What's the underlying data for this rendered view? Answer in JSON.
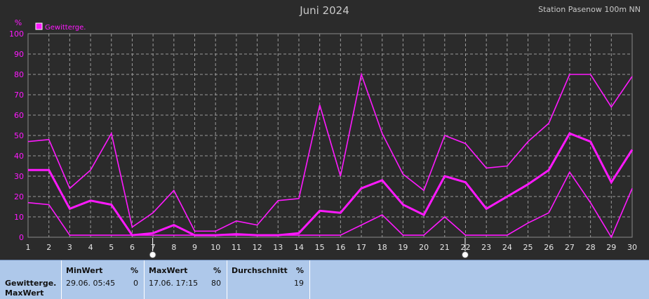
{
  "header": {
    "title": "Juni 2024",
    "station": "Station Pasenow 100m NN"
  },
  "chart_data": {
    "type": "line",
    "title": "Juni 2024",
    "ylabel": "%",
    "ylim": [
      0,
      100
    ],
    "yticks": [
      "0",
      "10",
      "20",
      "30",
      "40",
      "50",
      "60",
      "70",
      "80",
      "90",
      "100"
    ],
    "x": [
      1,
      2,
      3,
      4,
      5,
      6,
      7,
      8,
      9,
      10,
      11,
      12,
      13,
      14,
      15,
      16,
      17,
      18,
      19,
      20,
      21,
      22,
      23,
      24,
      25,
      26,
      27,
      28,
      29,
      30
    ],
    "xticks": [
      "1",
      "2",
      "3",
      "4",
      "5",
      "6",
      "7",
      "8",
      "9",
      "10",
      "11",
      "12",
      "13",
      "14",
      "15",
      "16",
      "17",
      "18",
      "19",
      "20",
      "21",
      "22",
      "23",
      "24",
      "25",
      "26",
      "27",
      "28",
      "29",
      "30"
    ],
    "legend": [
      "Gewitterge."
    ],
    "legend_position": "top-left",
    "grid": true,
    "colors": {
      "series": "#ff19ff",
      "grid": "#9a9a9a",
      "axis_text": "#ff19ff",
      "background": "#2b2b2b"
    },
    "series": [
      {
        "name": "Gewitterge.",
        "style": "max",
        "values": [
          47,
          48,
          24,
          33,
          51,
          5,
          12,
          23,
          3,
          3,
          8,
          6,
          18,
          19,
          65,
          30,
          80,
          51,
          31,
          23,
          50,
          46,
          34,
          35,
          47,
          56,
          80,
          80,
          64,
          79
        ]
      },
      {
        "style": "avg",
        "values": [
          33,
          33,
          14,
          18,
          16,
          1,
          2,
          6,
          1,
          1,
          1.5,
          1,
          1,
          2,
          13,
          12,
          24,
          28,
          16,
          11,
          30,
          27,
          14,
          20,
          26,
          33,
          51,
          47,
          27,
          43
        ]
      },
      {
        "style": "min",
        "values": [
          17,
          16,
          1,
          1,
          1,
          1,
          1,
          1,
          1,
          1,
          1,
          1,
          1,
          1,
          1,
          1,
          6,
          11,
          1,
          1,
          10,
          1,
          1,
          1,
          7,
          12,
          32,
          17,
          0,
          24
        ]
      }
    ],
    "markers": [
      7,
      22
    ]
  },
  "stats": {
    "row_label_1": "Gewitterge.",
    "row_label_2": "MaxWert",
    "min": {
      "header": "MinWert",
      "unit": "%",
      "time": "29.06.  05:45",
      "value": "0"
    },
    "max": {
      "header": "MaxWert",
      "unit": "%",
      "time": "17.06.  17:15",
      "value": "80"
    },
    "avg": {
      "header": "Durchschnitt",
      "unit": "%",
      "value": "19"
    }
  }
}
